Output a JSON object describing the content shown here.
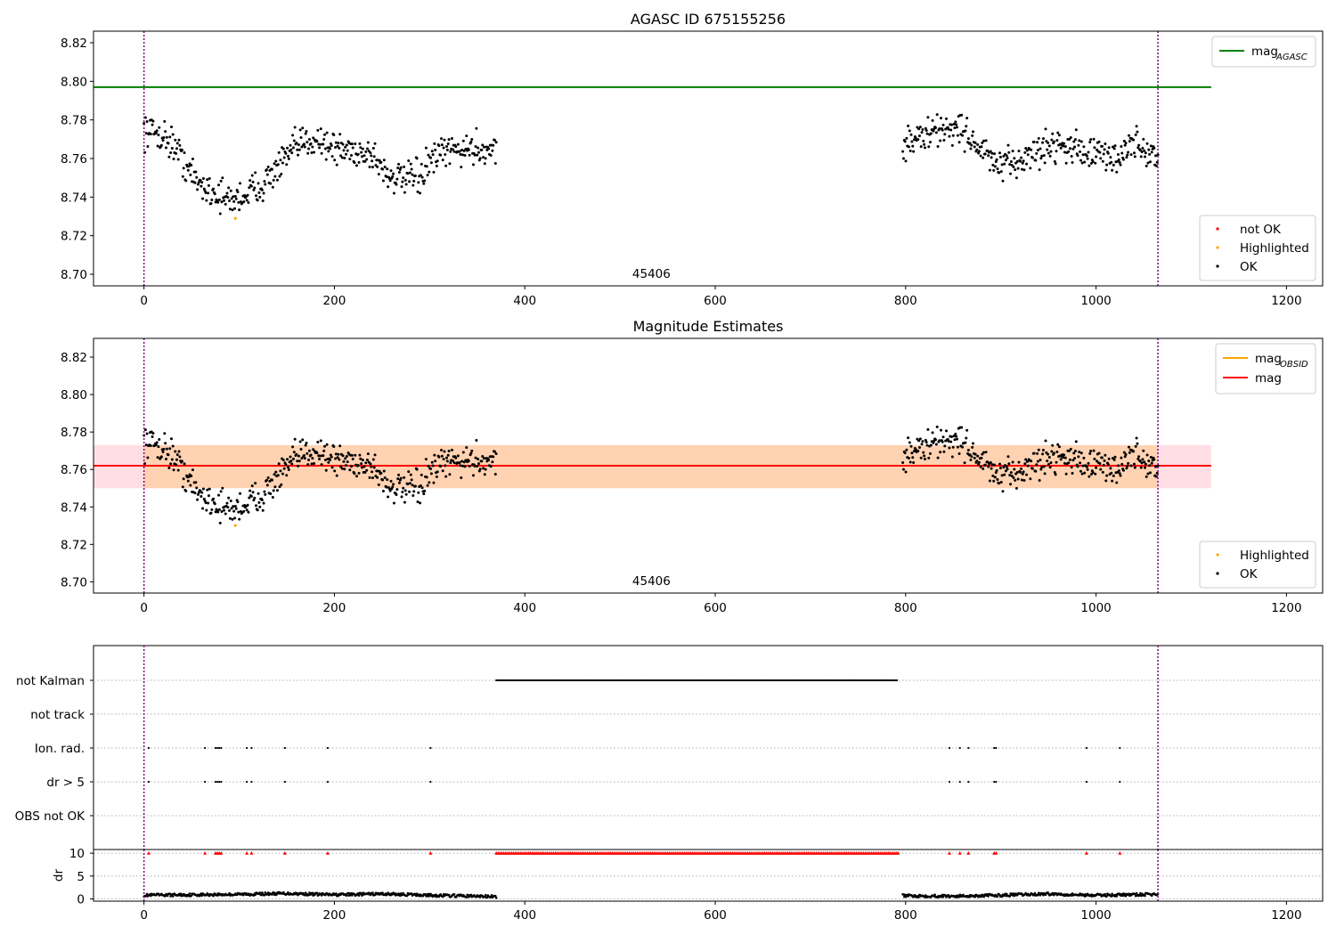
{
  "chart_data": [
    {
      "panel": "top",
      "type": "scatter",
      "title": "AGASC ID 675155256",
      "xlim": [
        -53,
        1238
      ],
      "ylim": [
        8.694,
        8.826
      ],
      "xticks": [
        "0",
        "200",
        "400",
        "600",
        "800",
        "1000",
        "1200"
      ],
      "yticks": [
        "8.70",
        "8.72",
        "8.74",
        "8.76",
        "8.78",
        "8.80",
        "8.82"
      ],
      "vlines_x": [
        0,
        1065
      ],
      "obsid_label": "45406",
      "obsid_label_x": 533,
      "mag_agasc": 8.797,
      "mag_agasc_xrange": [
        -53,
        1121
      ],
      "legend_upper": [
        {
          "label": "mag",
          "sub": "AGASC",
          "color": "#008000"
        }
      ],
      "legend_lower": [
        {
          "label": "not OK",
          "color": "#ff0000"
        },
        {
          "label": "Highlighted",
          "color": "#ffa500"
        },
        {
          "label": "OK",
          "color": "#000000"
        }
      ],
      "highlighted_points": [
        [
          96,
          8.729
        ]
      ],
      "segments": [
        {
          "x_start": 0,
          "x_end": 370,
          "knots": [
            [
              0,
              8.775
            ],
            [
              15,
              8.773
            ],
            [
              30,
              8.768
            ],
            [
              40,
              8.76
            ],
            [
              55,
              8.748
            ],
            [
              75,
              8.742
            ],
            [
              90,
              8.738
            ],
            [
              105,
              8.741
            ],
            [
              125,
              8.747
            ],
            [
              140,
              8.755
            ],
            [
              160,
              8.766
            ],
            [
              180,
              8.771
            ],
            [
              200,
              8.765
            ],
            [
              220,
              8.764
            ],
            [
              240,
              8.762
            ],
            [
              255,
              8.752
            ],
            [
              270,
              8.749
            ],
            [
              290,
              8.75
            ],
            [
              300,
              8.758
            ],
            [
              320,
              8.764
            ],
            [
              340,
              8.765
            ],
            [
              370,
              8.765
            ]
          ]
        },
        {
          "x_start": 797,
          "x_end": 1065,
          "knots": [
            [
              797,
              8.767
            ],
            [
              820,
              8.772
            ],
            [
              845,
              8.776
            ],
            [
              860,
              8.775
            ],
            [
              880,
              8.764
            ],
            [
              900,
              8.755
            ],
            [
              915,
              8.758
            ],
            [
              935,
              8.763
            ],
            [
              960,
              8.768
            ],
            [
              980,
              8.765
            ],
            [
              1000,
              8.762
            ],
            [
              1020,
              8.76
            ],
            [
              1040,
              8.768
            ],
            [
              1065,
              8.76
            ]
          ]
        }
      ],
      "noise": 0.006
    },
    {
      "panel": "middle",
      "type": "scatter",
      "title": "Magnitude Estimates",
      "xlim": [
        -53,
        1238
      ],
      "ylim": [
        8.694,
        8.83
      ],
      "xticks": [
        "0",
        "200",
        "400",
        "600",
        "800",
        "1000",
        "1200"
      ],
      "yticks": [
        "8.70",
        "8.72",
        "8.74",
        "8.76",
        "8.78",
        "8.80",
        "8.82"
      ],
      "vlines_x": [
        0,
        1065
      ],
      "obsid_label": "45406",
      "obsid_label_x": 533,
      "mag": 8.762,
      "mag_obsid": 8.762,
      "band": [
        8.75,
        8.773
      ],
      "band_xrange": [
        -53,
        1121
      ],
      "obsid_band_xrange": [
        0,
        1065
      ],
      "legend_upper": [
        {
          "label": "mag",
          "sub": "OBSID",
          "color": "#ffa500"
        },
        {
          "label": "mag",
          "sub": "",
          "color": "#ff0000"
        }
      ],
      "legend_lower": [
        {
          "label": "Highlighted",
          "color": "#ffa500"
        },
        {
          "label": "OK",
          "color": "#000000"
        }
      ]
    },
    {
      "panel": "flags",
      "type": "scatter",
      "xlim": [
        -53,
        1238
      ],
      "categories": [
        "not Kalman",
        "not track",
        "Ion. rad.",
        "dr > 5",
        "OBS not OK"
      ],
      "not_kalman_range": [
        370,
        792
      ],
      "ion_rad_x": [
        5,
        64,
        75,
        77,
        79,
        81,
        108,
        113,
        148,
        193,
        301,
        846,
        857,
        866,
        893,
        895,
        990,
        1025
      ],
      "dr_gt5_x": [
        5,
        64,
        75,
        77,
        79,
        81,
        108,
        113,
        148,
        193,
        301,
        846,
        857,
        866,
        893,
        895,
        990,
        1025
      ]
    },
    {
      "panel": "dr",
      "type": "scatter",
      "xlim": [
        -53,
        1238
      ],
      "ylim": [
        -0.5,
        10.8
      ],
      "ylabel": "dr",
      "yticks": [
        "0",
        "5",
        "10"
      ],
      "xticks": [
        "0",
        "200",
        "400",
        "600",
        "800",
        "1000",
        "1200"
      ],
      "clipped_value": 10,
      "clipped_x": [
        5,
        64,
        75,
        77,
        79,
        81,
        108,
        113,
        148,
        193,
        301,
        846,
        857,
        866,
        893,
        895,
        990,
        1025
      ],
      "clipped_range": [
        370,
        792
      ],
      "dr_segments": [
        {
          "x_start": 0,
          "x_end": 370,
          "knots": [
            [
              0,
              0.8
            ],
            [
              50,
              0.9
            ],
            [
              100,
              1.0
            ],
            [
              150,
              1.2
            ],
            [
              200,
              0.9
            ],
            [
              250,
              1.1
            ],
            [
              300,
              0.8
            ],
            [
              370,
              0.5
            ]
          ]
        },
        {
          "x_start": 797,
          "x_end": 1065,
          "knots": [
            [
              797,
              0.7
            ],
            [
              850,
              0.6
            ],
            [
              900,
              0.8
            ],
            [
              950,
              1.1
            ],
            [
              1000,
              0.8
            ],
            [
              1065,
              1.0
            ]
          ]
        }
      ]
    }
  ]
}
